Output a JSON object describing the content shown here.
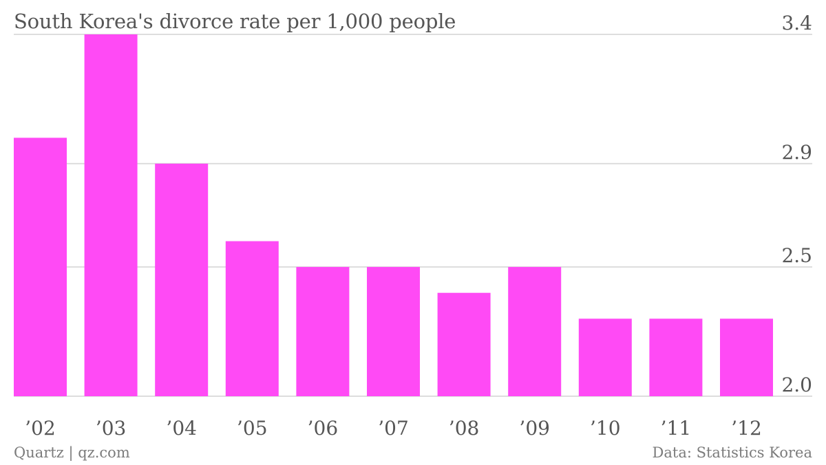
{
  "chart_data": {
    "type": "bar",
    "title": "South Korea's divorce rate per 1,000 people",
    "categories": [
      "’02",
      "’03",
      "’04",
      "’05",
      "’06",
      "’07",
      "’08",
      "’09",
      "’10",
      "’11",
      "’12"
    ],
    "values": [
      3.0,
      3.4,
      2.9,
      2.6,
      2.5,
      2.5,
      2.4,
      2.5,
      2.3,
      2.3,
      2.3
    ],
    "ylim": [
      2.0,
      3.4
    ],
    "yticks": [
      "3.4",
      "2.9",
      "2.5",
      "2.0"
    ],
    "ytick_values": [
      3.4,
      2.9,
      2.5,
      2.0
    ],
    "xlabel": "",
    "ylabel": "",
    "grid": true,
    "y_axis_side": "right",
    "bar_color": "#ff4af5",
    "grid_color": "#dddddd"
  },
  "footer": {
    "source_left": "Quartz | qz.com",
    "source_right": "Data: Statistics Korea"
  }
}
